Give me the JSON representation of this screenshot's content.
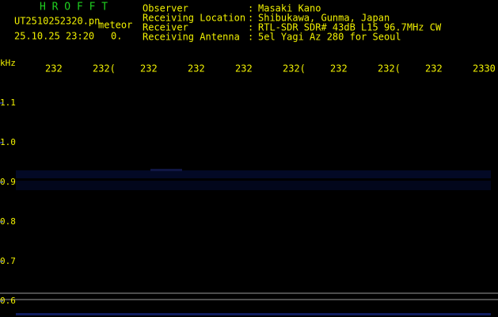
{
  "header": {
    "app": "H R O F F T",
    "file": "UT2510252320.pn",
    "mode": "meteor",
    "datetime": "25.10.25 23:20",
    "count": "0.",
    "fields": [
      {
        "label": "Observer",
        "value": "Masaki Kano"
      },
      {
        "label": "Receiving Location",
        "value": "Shibukawa, Gunma, Japan"
      },
      {
        "label": "Receiver",
        "value": "RTL-SDR SDR# 43dB L15 96.7MHz CW"
      },
      {
        "label": "Receiving Antenna",
        "value": "5el Yagi Az 280 for Seoul"
      }
    ],
    "separator": ":"
  },
  "chart_data": {
    "type": "spectrogram",
    "y_unit": "kHz",
    "x_labels": [
      "232",
      "232(",
      "232",
      "232",
      "232",
      "232(",
      "232",
      "232(",
      "232",
      "2330"
    ],
    "ylim": [
      0.56,
      1.16
    ],
    "yticks": [
      {
        "value": 1.1,
        "label": "1.1"
      },
      {
        "value": 1.0,
        "label": "1.0"
      },
      {
        "value": 0.9,
        "label": "0.9"
      },
      {
        "value": 0.8,
        "label": "0.8"
      },
      {
        "value": 0.7,
        "label": "0.7"
      },
      {
        "value": 0.6,
        "label": "0.6"
      }
    ]
  }
}
